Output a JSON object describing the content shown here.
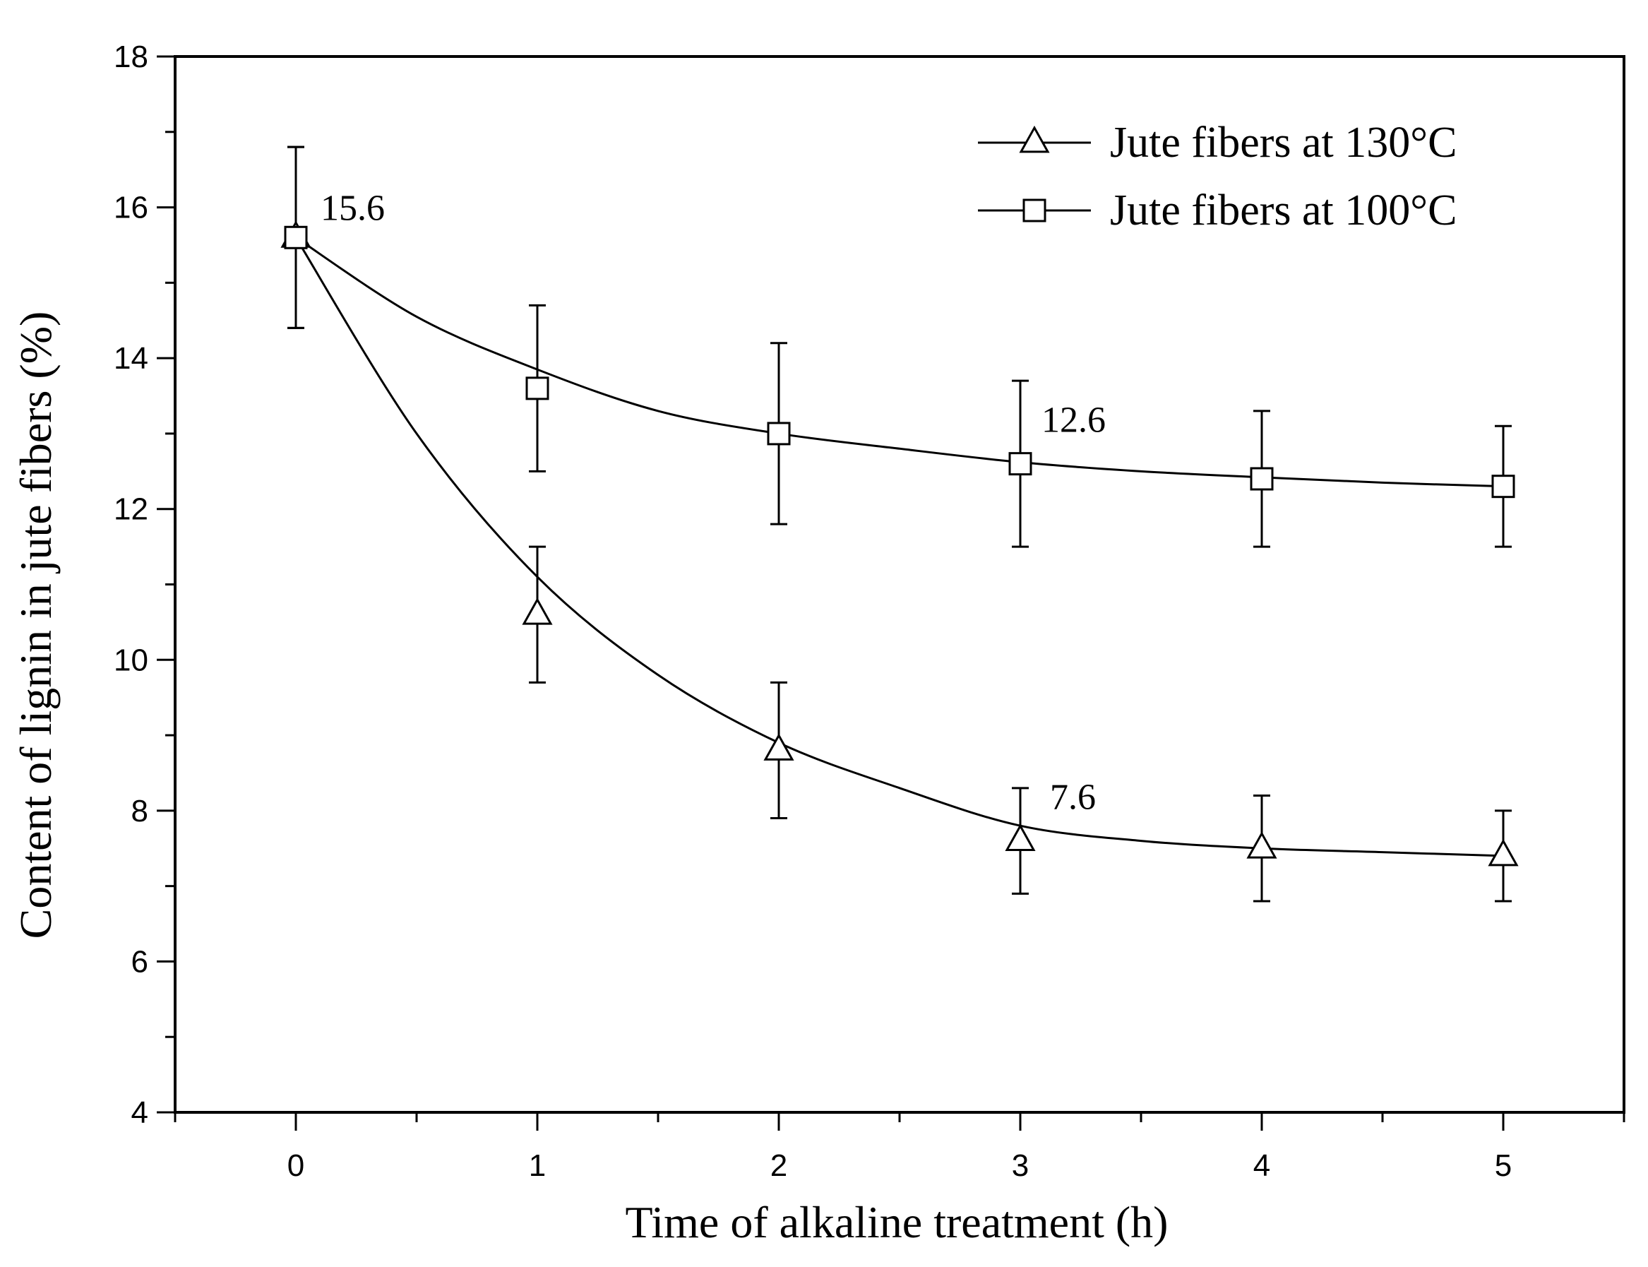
{
  "chart_data": {
    "type": "line",
    "xlabel": "Time of alkaline treatment (h)",
    "ylabel": "Content of lignin in jute fibers (%)",
    "xlim": [
      -0.5,
      5.5
    ],
    "ylim": [
      4,
      18
    ],
    "xticks": [
      0,
      1,
      2,
      3,
      4,
      5
    ],
    "yticks": [
      4,
      6,
      8,
      10,
      12,
      14,
      16,
      18
    ],
    "grid": false,
    "legend_position": "top-right",
    "series": [
      {
        "name": "Jute fibers at 130°C",
        "marker": "triangle",
        "x": [
          0,
          1,
          2,
          3,
          4,
          5
        ],
        "values": [
          15.6,
          10.6,
          8.8,
          7.6,
          7.5,
          7.4
        ],
        "err_low": [
          14.4,
          9.7,
          7.9,
          6.9,
          6.8,
          6.8
        ],
        "err_high": [
          16.8,
          11.5,
          9.7,
          8.3,
          8.2,
          8.0
        ],
        "curve": [
          [
            0,
            15.6
          ],
          [
            0.5,
            13.0
          ],
          [
            1,
            11.1
          ],
          [
            1.5,
            9.8
          ],
          [
            2,
            8.9
          ],
          [
            2.5,
            8.3
          ],
          [
            3,
            7.8
          ],
          [
            3.5,
            7.6
          ],
          [
            4,
            7.5
          ],
          [
            4.5,
            7.45
          ],
          [
            5,
            7.4
          ]
        ]
      },
      {
        "name": "Jute fibers at 100°C",
        "marker": "square",
        "x": [
          0,
          1,
          2,
          3,
          4,
          5
        ],
        "values": [
          15.6,
          13.6,
          13.0,
          12.6,
          12.4,
          12.3
        ],
        "err_low": [
          14.4,
          12.5,
          11.8,
          11.5,
          11.5,
          11.5
        ],
        "err_high": [
          16.8,
          14.7,
          14.2,
          13.7,
          13.3,
          13.1
        ],
        "curve": [
          [
            0,
            15.6
          ],
          [
            0.5,
            14.55
          ],
          [
            1,
            13.85
          ],
          [
            1.5,
            13.3
          ],
          [
            2,
            13.0
          ],
          [
            2.5,
            12.8
          ],
          [
            3,
            12.62
          ],
          [
            3.5,
            12.5
          ],
          [
            4,
            12.42
          ],
          [
            4.5,
            12.35
          ],
          [
            5,
            12.3
          ]
        ]
      }
    ],
    "annotations": [
      {
        "text": "15.6",
        "x": 0,
        "y": 15.6
      },
      {
        "text": "12.6",
        "x": 3,
        "y": 12.6
      },
      {
        "text": "7.6",
        "x": 3,
        "y": 7.6
      }
    ]
  }
}
